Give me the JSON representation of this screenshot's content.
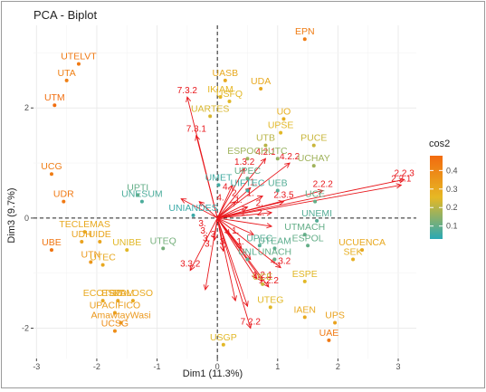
{
  "chart_data": {
    "type": "scatter",
    "title": "PCA - Biplot",
    "xlabel": "Dim1 (11.3%)",
    "ylabel": "Dim3 (9.7%)",
    "xlim": [
      -3.05,
      3.3
    ],
    "ylim": [
      -2.55,
      3.5
    ],
    "xticks": [
      -3,
      -2,
      -1,
      0,
      1,
      2,
      3
    ],
    "yticks": [
      -2,
      0,
      2
    ],
    "grid": true,
    "legend": {
      "title": "cos2",
      "position": "right",
      "ticks": [
        0.1,
        0.2,
        0.3,
        0.4
      ],
      "range": [
        0.03,
        0.48
      ],
      "colors": [
        "#2aa9b5",
        "#e6b824",
        "#f26b0f"
      ]
    },
    "points": [
      {
        "label": "EPN",
        "x": 1.45,
        "y": 3.25,
        "cos2": 0.43
      },
      {
        "label": "UTELVT",
        "x": -2.3,
        "y": 2.8,
        "cos2": 0.44
      },
      {
        "label": "UTA",
        "x": -2.5,
        "y": 2.5,
        "cos2": 0.42
      },
      {
        "label": "UASB",
        "x": 0.13,
        "y": 2.5,
        "cos2": 0.3
      },
      {
        "label": "UDA",
        "x": 0.72,
        "y": 2.35,
        "cos2": 0.3
      },
      {
        "label": "IKIAM",
        "x": 0.05,
        "y": 2.2,
        "cos2": 0.26
      },
      {
        "label": "USFQ",
        "x": 0.2,
        "y": 2.12,
        "cos2": 0.25
      },
      {
        "label": "UTM",
        "x": -2.7,
        "y": 2.05,
        "cos2": 0.47
      },
      {
        "label": "UARTES",
        "x": -0.12,
        "y": 1.85,
        "cos2": 0.24
      },
      {
        "label": "UO",
        "x": 1.1,
        "y": 1.8,
        "cos2": 0.28
      },
      {
        "label": "UPSE",
        "x": 1.05,
        "y": 1.55,
        "cos2": 0.25
      },
      {
        "label": "PUCE",
        "x": 1.6,
        "y": 1.32,
        "cos2": 0.22
      },
      {
        "label": "UTB",
        "x": 0.8,
        "y": 1.32,
        "cos2": 0.2
      },
      {
        "label": "ESPOCH",
        "x": 0.5,
        "y": 1.08,
        "cos2": 0.17
      },
      {
        "label": "UTC",
        "x": 1.0,
        "y": 1.08,
        "cos2": 0.16
      },
      {
        "label": "UCHAY",
        "x": 1.6,
        "y": 0.95,
        "cos2": 0.17
      },
      {
        "label": "UCG",
        "x": -2.75,
        "y": 0.8,
        "cos2": 0.43
      },
      {
        "label": "UPEC",
        "x": 0.5,
        "y": 0.72,
        "cos2": 0.1
      },
      {
        "label": "UMET",
        "x": 0.02,
        "y": 0.6,
        "cos2": 0.06
      },
      {
        "label": "UIFTEC",
        "x": 0.5,
        "y": 0.5,
        "cos2": 0.06
      },
      {
        "label": "UEB",
        "x": 1.0,
        "y": 0.5,
        "cos2": 0.08
      },
      {
        "label": "UPTI",
        "x": -1.32,
        "y": 0.42,
        "cos2": 0.1
      },
      {
        "label": "UNESUM",
        "x": -1.25,
        "y": 0.3,
        "cos2": 0.07
      },
      {
        "label": "UCE",
        "x": 1.62,
        "y": 0.3,
        "cos2": 0.1
      },
      {
        "label": "UDR",
        "x": -2.55,
        "y": 0.3,
        "cos2": 0.44
      },
      {
        "label": "UNIANDES",
        "x": -0.4,
        "y": 0.05,
        "cos2": 0.05
      },
      {
        "label": "UNEMI",
        "x": 1.65,
        "y": -0.05,
        "cos2": 0.08
      },
      {
        "label": "TECLEMAS",
        "x": -2.2,
        "y": -0.25,
        "cos2": 0.3
      },
      {
        "label": "UTMACH",
        "x": 1.45,
        "y": -0.3,
        "cos2": 0.1
      },
      {
        "label": "UDH",
        "x": -2.25,
        "y": -0.43,
        "cos2": 0.32
      },
      {
        "label": "UIDE",
        "x": -1.95,
        "y": -0.43,
        "cos2": 0.31
      },
      {
        "label": "ESPOL",
        "x": 1.5,
        "y": -0.5,
        "cos2": 0.1
      },
      {
        "label": "UBE",
        "x": -2.75,
        "y": -0.58,
        "cos2": 0.45
      },
      {
        "label": "UNIBE",
        "x": -1.5,
        "y": -0.58,
        "cos2": 0.25
      },
      {
        "label": "UTEQ",
        "x": -0.9,
        "y": -0.55,
        "cos2": 0.12
      },
      {
        "label": "UPEC",
        "x": 0.7,
        "y": -0.5,
        "cos2": 0.08
      },
      {
        "label": "UTEAM",
        "x": 0.95,
        "y": -0.55,
        "cos2": 0.09
      },
      {
        "label": "UCUENCA",
        "x": 2.4,
        "y": -0.58,
        "cos2": 0.3
      },
      {
        "label": "UNACH",
        "x": 0.95,
        "y": -0.75,
        "cos2": 0.1
      },
      {
        "label": "SEK",
        "x": 2.25,
        "y": -0.75,
        "cos2": 0.28
      },
      {
        "label": "UNL",
        "x": 0.5,
        "y": -0.75,
        "cos2": 0.09
      },
      {
        "label": "UTN",
        "x": -2.1,
        "y": -0.8,
        "cos2": 0.35
      },
      {
        "label": "UTEC",
        "x": -1.9,
        "y": -0.85,
        "cos2": 0.3
      },
      {
        "label": "UCE",
        "x": 0.75,
        "y": -1.2,
        "cos2": 0.22
      },
      {
        "label": "ESPE",
        "x": 1.45,
        "y": -1.15,
        "cos2": 0.25
      },
      {
        "label": "ECOTEC",
        "x": -1.9,
        "y": -1.5,
        "cos2": 0.3
      },
      {
        "label": "ESPAM",
        "x": -1.65,
        "y": -1.5,
        "cos2": 0.31
      },
      {
        "label": "UDLOSO",
        "x": -1.4,
        "y": -1.5,
        "cos2": 0.3
      },
      {
        "label": "UTEG",
        "x": 0.88,
        "y": -1.62,
        "cos2": 0.25
      },
      {
        "label": "UPACIFICO",
        "x": -1.7,
        "y": -1.72,
        "cos2": 0.33
      },
      {
        "label": "IAEN",
        "x": 1.45,
        "y": -1.8,
        "cos2": 0.3
      },
      {
        "label": "AmawtayWasi",
        "x": -1.6,
        "y": -1.9,
        "cos2": 0.35
      },
      {
        "label": "UPS",
        "x": 1.95,
        "y": -1.9,
        "cos2": 0.32
      },
      {
        "label": "UCSG",
        "x": -1.7,
        "y": -2.05,
        "cos2": 0.38
      },
      {
        "label": "UAE",
        "x": 1.85,
        "y": -2.22,
        "cos2": 0.44
      },
      {
        "label": "USGP",
        "x": 0.1,
        "y": -2.3,
        "cos2": 0.25
      }
    ],
    "arrows": [
      {
        "label": "2.2.1",
        "x": 3.05,
        "y": 0.6
      },
      {
        "label": "2.2.3",
        "x": 3.1,
        "y": 0.7
      },
      {
        "label": "2.2.2",
        "x": 1.75,
        "y": 0.5
      },
      {
        "label": "7.3.2",
        "x": -0.5,
        "y": 2.2
      },
      {
        "label": "7.3.1",
        "x": -0.35,
        "y": 1.5
      },
      {
        "label": "4.2.1",
        "x": 0.8,
        "y": 1.08
      },
      {
        "label": "4.2.2",
        "x": 1.2,
        "y": 1.0
      },
      {
        "label": "1.3.2",
        "x": 0.45,
        "y": 0.9
      },
      {
        "label": "2.3.5",
        "x": 1.1,
        "y": 0.3
      },
      {
        "label": "3.3.2",
        "x": -0.45,
        "y": -0.95
      },
      {
        "label": "4.3.2",
        "x": 1.05,
        "y": -0.9
      },
      {
        "label": "1.2.1",
        "x": 0.75,
        "y": -1.15
      },
      {
        "label": "1.2.2",
        "x": 0.85,
        "y": -1.25
      },
      {
        "label": "7.2.2",
        "x": 0.55,
        "y": -2.0
      },
      {
        "label": "",
        "x": 0.5,
        "y": -1.6
      },
      {
        "label": "",
        "x": 0.3,
        "y": -1.5
      },
      {
        "label": "",
        "x": 0.65,
        "y": -1.1
      },
      {
        "label": "",
        "x": -0.2,
        "y": -1.3
      },
      {
        "label": "",
        "x": -0.6,
        "y": 0.35
      },
      {
        "label": "",
        "x": 0.25,
        "y": 0.6
      },
      {
        "label": "",
        "x": 0.55,
        "y": 0.55
      },
      {
        "label": "",
        "x": 0.4,
        "y": -0.55
      },
      {
        "label": "",
        "x": 0.75,
        "y": 0.4
      },
      {
        "label": "",
        "x": 0.3,
        "y": 0.3
      },
      {
        "label": "",
        "x": 0.5,
        "y": 0.2
      },
      {
        "label": "",
        "x": -0.3,
        "y": 0.3
      },
      {
        "label": "",
        "x": -0.05,
        "y": -0.4
      },
      {
        "label": "",
        "x": 0.6,
        "y": -0.3
      },
      {
        "label": "",
        "x": 0.1,
        "y": -0.6
      },
      {
        "label": "",
        "x": 0.55,
        "y": -0.75
      },
      {
        "label": "",
        "x": 0.2,
        "y": -0.3
      },
      {
        "label": "",
        "x": 0.9,
        "y": 0.1
      },
      {
        "label": "",
        "x": 0.9,
        "y": -0.15
      }
    ],
    "arrow_labels": [
      {
        "text": "3.",
        "x": -0.25,
        "y": -0.15
      },
      {
        "text": "3.",
        "x": -0.22,
        "y": -0.28
      },
      {
        "text": "3.",
        "x": -0.18,
        "y": -0.42
      },
      {
        "text": "3.",
        "x": -0.15,
        "y": -0.52
      },
      {
        "text": "3.",
        "x": 0.1,
        "y": -0.48
      },
      {
        "text": "3.",
        "x": -0.05,
        "y": -0.35
      },
      {
        "text": "1.",
        "x": 0.3,
        "y": -0.28
      },
      {
        "text": "1.",
        "x": 0.38,
        "y": -0.48
      },
      {
        "text": "1.",
        "x": 0.45,
        "y": 0.05
      },
      {
        "text": "1.",
        "x": 0.35,
        "y": 0.28
      },
      {
        "text": "1.",
        "x": 0.55,
        "y": 0.4
      },
      {
        "text": "1.",
        "x": 0.6,
        "y": 0.6
      },
      {
        "text": "2.",
        "x": 0.7,
        "y": 0.22
      },
      {
        "text": "2.",
        "x": 0.72,
        "y": 0.05
      },
      {
        "text": "2.",
        "x": 0.3,
        "y": 0.4
      },
      {
        "text": "4.",
        "x": 0.15,
        "y": 0.52
      },
      {
        "text": "4.",
        "x": 0.05,
        "y": 0.32
      }
    ]
  }
}
